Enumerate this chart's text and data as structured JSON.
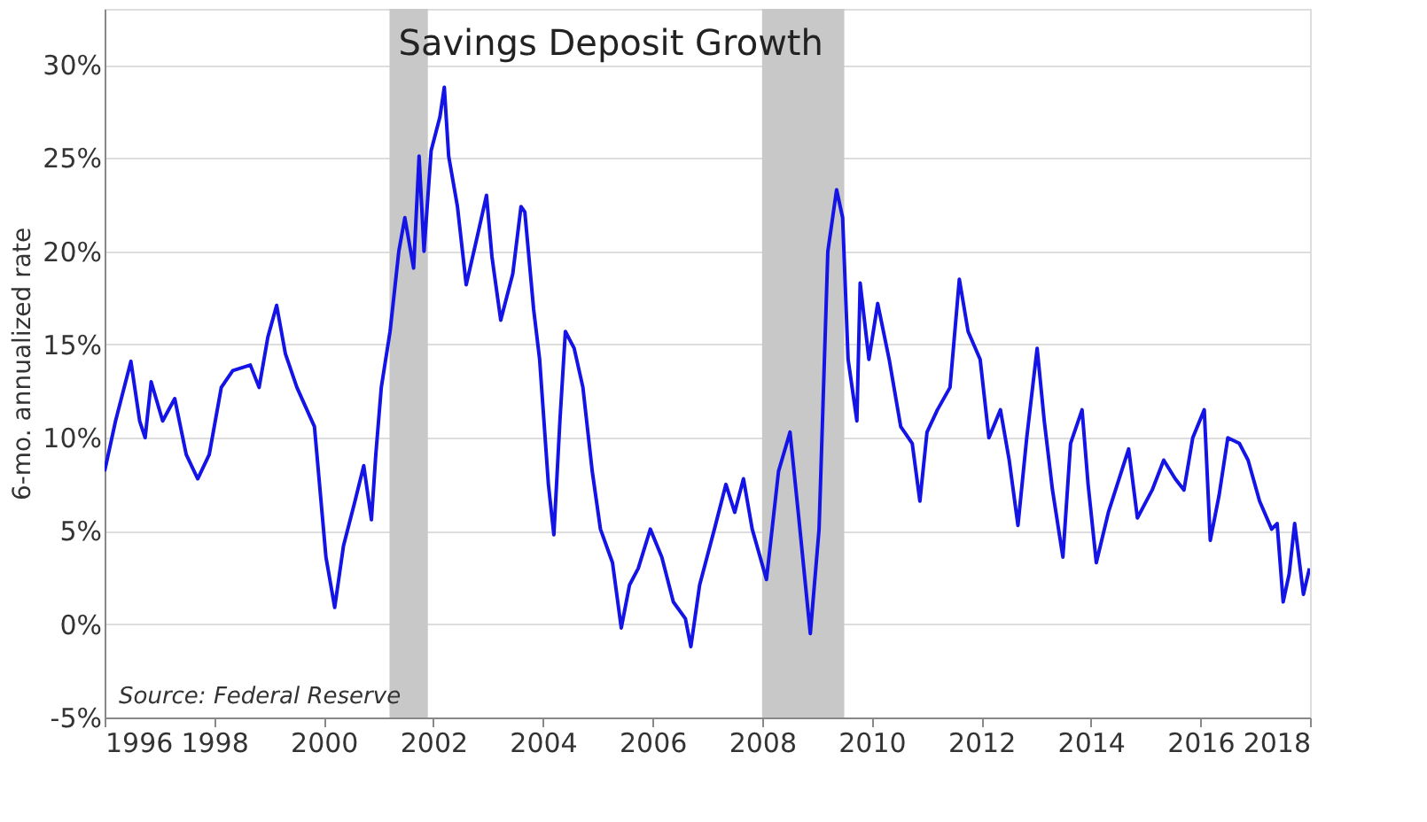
{
  "chart_data": {
    "type": "line",
    "title": "Savings Deposit Growth",
    "ylabel": "6-mo. annualized rate",
    "annotations": [
      "Source: Federal Reserve"
    ],
    "xlim": [
      1996,
      2018
    ],
    "xticks": [
      1996,
      1998,
      2000,
      2002,
      2004,
      2006,
      2008,
      2010,
      2012,
      2014,
      2016,
      2018
    ],
    "ylim": [
      -5,
      33
    ],
    "yticks": [
      {
        "value": -5,
        "label": "-5%"
      },
      {
        "value": 0,
        "label": "0%"
      },
      {
        "value": 5,
        "label": "5%"
      },
      {
        "value": 10,
        "label": "10%"
      },
      {
        "value": 15,
        "label": "15%"
      },
      {
        "value": 20,
        "label": "20%"
      },
      {
        "value": 25,
        "label": "25%"
      },
      {
        "value": 30,
        "label": "30%"
      }
    ],
    "grid": "y",
    "marker": "none",
    "line_style": "solid",
    "bands": [
      {
        "axis": "x",
        "from": 2001.2,
        "to": 2001.9,
        "color": "#c8c8c8"
      },
      {
        "axis": "x",
        "from": 2008.0,
        "to": 2009.5,
        "color": "#c8c8c8"
      }
    ],
    "series": [
      {
        "color": "#1414e6",
        "x": [
          1996.0,
          1996.2,
          1996.48,
          1996.64,
          1996.74,
          1996.85,
          1997.06,
          1997.28,
          1997.49,
          1997.7,
          1997.91,
          1998.13,
          1998.34,
          1998.66,
          1998.82,
          1998.98,
          1999.14,
          1999.3,
          1999.51,
          1999.83,
          2000.04,
          2000.2,
          2000.36,
          2000.57,
          2000.73,
          2000.87,
          2000.95,
          2001.05,
          2001.21,
          2001.37,
          2001.48,
          2001.64,
          2001.74,
          2001.83,
          2001.96,
          2002.12,
          2002.2,
          2002.28,
          2002.44,
          2002.6,
          2002.81,
          2002.97,
          2003.07,
          2003.23,
          2003.45,
          2003.6,
          2003.67,
          2003.83,
          2003.94,
          2004.1,
          2004.2,
          2004.31,
          2004.41,
          2004.57,
          2004.73,
          2004.9,
          2005.05,
          2005.27,
          2005.43,
          2005.58,
          2005.74,
          2005.96,
          2006.17,
          2006.38,
          2006.6,
          2006.7,
          2006.86,
          2007.13,
          2007.34,
          2007.5,
          2007.66,
          2007.82,
          2008.08,
          2008.3,
          2008.51,
          2008.67,
          2008.88,
          2009.04,
          2009.2,
          2009.36,
          2009.47,
          2009.57,
          2009.73,
          2009.79,
          2009.95,
          2010.11,
          2010.32,
          2010.53,
          2010.74,
          2010.88,
          2011.01,
          2011.2,
          2011.43,
          2011.6,
          2011.76,
          2011.98,
          2012.14,
          2012.35,
          2012.51,
          2012.67,
          2012.83,
          2013.02,
          2013.15,
          2013.3,
          2013.49,
          2013.63,
          2013.84,
          2013.95,
          2014.1,
          2014.32,
          2014.69,
          2014.85,
          2015.12,
          2015.33,
          2015.54,
          2015.7,
          2015.86,
          2016.07,
          2016.18,
          2016.34,
          2016.5,
          2016.71,
          2016.87,
          2017.08,
          2017.3,
          2017.4,
          2017.51,
          2017.62,
          2017.72,
          2017.88,
          2017.99
        ],
        "values": [
          8.2,
          10.9,
          14.1,
          10.9,
          10.0,
          13.0,
          10.9,
          12.1,
          9.1,
          7.8,
          9.1,
          12.7,
          13.6,
          13.9,
          12.7,
          15.4,
          17.1,
          14.5,
          12.7,
          10.6,
          3.6,
          0.9,
          4.2,
          6.6,
          8.5,
          5.6,
          9.1,
          12.7,
          15.7,
          20.0,
          21.8,
          19.1,
          25.1,
          20.0,
          25.4,
          27.2,
          28.8,
          25.1,
          22.4,
          18.2,
          20.9,
          23.0,
          19.7,
          16.3,
          18.8,
          22.4,
          22.1,
          16.9,
          14.2,
          7.5,
          4.8,
          10.9,
          15.7,
          14.8,
          12.7,
          8.2,
          5.1,
          3.3,
          -0.2,
          2.1,
          3.0,
          5.1,
          3.6,
          1.2,
          0.3,
          -1.2,
          2.1,
          5.1,
          7.5,
          6.0,
          7.8,
          5.1,
          2.4,
          8.2,
          10.3,
          5.7,
          -0.5,
          5.1,
          20.0,
          23.3,
          21.8,
          14.2,
          10.9,
          18.3,
          14.2,
          17.2,
          14.2,
          10.6,
          9.7,
          6.6,
          10.3,
          11.5,
          12.7,
          18.5,
          15.7,
          14.2,
          10.0,
          11.5,
          8.8,
          5.3,
          10.0,
          14.8,
          10.9,
          7.2,
          3.6,
          9.7,
          11.5,
          7.5,
          3.3,
          6.0,
          9.4,
          5.7,
          7.2,
          8.8,
          7.8,
          7.2,
          10.0,
          11.5,
          4.5,
          6.9,
          10.0,
          9.7,
          8.8,
          6.6,
          5.1,
          5.4,
          1.2,
          2.7,
          5.4,
          1.6,
          3.0
        ]
      }
    ]
  }
}
